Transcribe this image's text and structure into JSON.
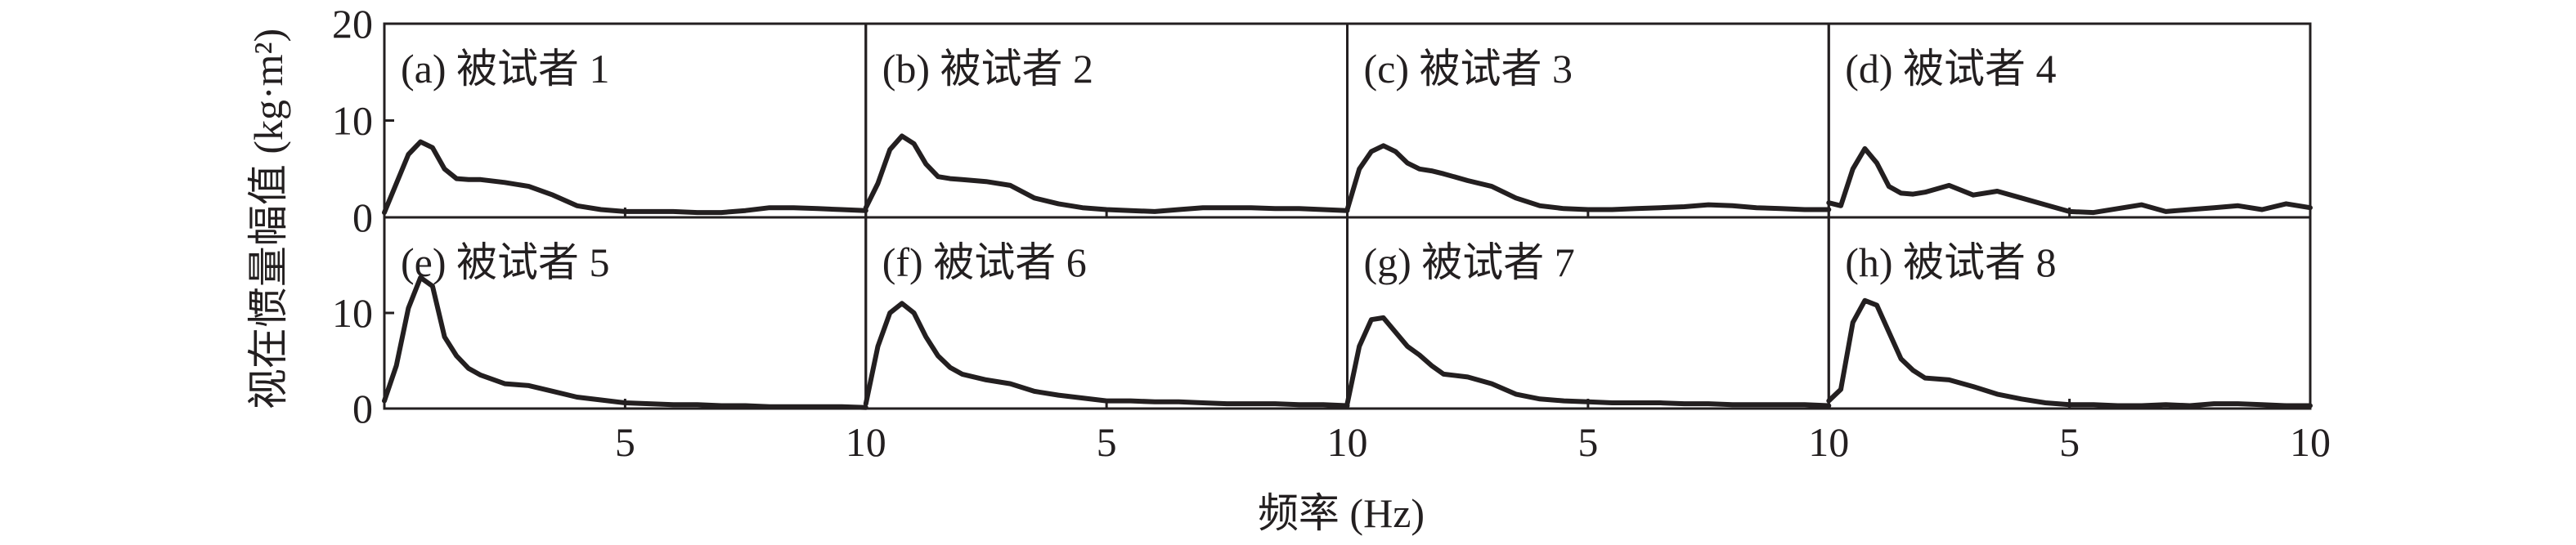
{
  "figure": {
    "ylabel": "视在惯量幅值 (kg·m²)",
    "xlabel": "频率 (Hz)"
  },
  "chart_data": {
    "type": "line",
    "layout": "small-multiples-2x4",
    "x_ticks": [
      0,
      5,
      10
    ],
    "x_tick_labels_shown": [
      "5",
      "10"
    ],
    "y_ticks": [
      0,
      10,
      20
    ],
    "xlim": [
      0,
      10
    ],
    "ylim_top_row": [
      0,
      20
    ],
    "ylim_bottom_row": [
      0,
      20
    ],
    "panels": [
      {
        "label": "(a) 被试者 1",
        "x": [
          0,
          0.25,
          0.5,
          0.75,
          1,
          1.25,
          1.5,
          1.75,
          2,
          2.5,
          3,
          3.5,
          4,
          4.5,
          5,
          5.5,
          6,
          6.5,
          7,
          7.5,
          8,
          8.5,
          9,
          9.5,
          10
        ],
        "y": [
          0.5,
          3.5,
          6.5,
          7.8,
          7.2,
          5.0,
          4.0,
          3.9,
          3.9,
          3.6,
          3.2,
          2.3,
          1.2,
          0.8,
          0.6,
          0.6,
          0.6,
          0.5,
          0.5,
          0.7,
          1.0,
          1.0,
          0.9,
          0.8,
          0.7
        ]
      },
      {
        "label": "(b) 被试者 2",
        "x": [
          0,
          0.25,
          0.5,
          0.75,
          1,
          1.25,
          1.5,
          1.75,
          2,
          2.5,
          3,
          3.5,
          4,
          4.5,
          5,
          5.5,
          6,
          6.5,
          7,
          7.5,
          8,
          8.5,
          9,
          9.5,
          10
        ],
        "y": [
          1.0,
          3.5,
          7.0,
          8.4,
          7.6,
          5.5,
          4.2,
          4.0,
          3.9,
          3.7,
          3.3,
          2.0,
          1.4,
          1.0,
          0.8,
          0.7,
          0.6,
          0.8,
          1.0,
          1.0,
          1.0,
          0.9,
          0.9,
          0.8,
          0.7
        ]
      },
      {
        "label": "(c) 被试者 3",
        "x": [
          0,
          0.25,
          0.5,
          0.75,
          1,
          1.25,
          1.5,
          1.75,
          2,
          2.5,
          3,
          3.5,
          4,
          4.5,
          5,
          5.5,
          6,
          6.5,
          7,
          7.5,
          8,
          8.5,
          9,
          9.5,
          10
        ],
        "y": [
          0.8,
          5.0,
          6.8,
          7.4,
          6.8,
          5.6,
          5.0,
          4.8,
          4.5,
          3.8,
          3.2,
          2.0,
          1.2,
          0.9,
          0.8,
          0.8,
          0.9,
          1.0,
          1.1,
          1.3,
          1.2,
          1.0,
          0.9,
          0.8,
          0.8
        ]
      },
      {
        "label": "(d) 被试者 4",
        "x": [
          0,
          0.25,
          0.5,
          0.75,
          1,
          1.25,
          1.5,
          1.75,
          2,
          2.5,
          3,
          3.5,
          4,
          4.5,
          5,
          5.5,
          6,
          6.5,
          7,
          7.5,
          8,
          8.5,
          9,
          9.5,
          10
        ],
        "y": [
          1.5,
          1.2,
          5.0,
          7.1,
          5.6,
          3.2,
          2.5,
          2.4,
          2.6,
          3.3,
          2.3,
          2.7,
          2.0,
          1.3,
          0.6,
          0.5,
          0.9,
          1.3,
          0.6,
          0.8,
          1.0,
          1.2,
          0.8,
          1.4,
          1.0
        ]
      },
      {
        "label": "(e) 被试者 5",
        "x": [
          0,
          0.25,
          0.5,
          0.75,
          1,
          1.25,
          1.5,
          1.75,
          2,
          2.5,
          3,
          3.5,
          4,
          4.5,
          5,
          5.5,
          6,
          6.5,
          7,
          7.5,
          8,
          8.5,
          9,
          9.5,
          10
        ],
        "y": [
          0.8,
          4.5,
          10.5,
          13.7,
          12.8,
          7.5,
          5.5,
          4.2,
          3.5,
          2.6,
          2.4,
          1.8,
          1.2,
          0.9,
          0.6,
          0.5,
          0.4,
          0.4,
          0.3,
          0.3,
          0.2,
          0.2,
          0.2,
          0.2,
          0.1
        ]
      },
      {
        "label": "(f) 被试者 6",
        "x": [
          0,
          0.25,
          0.5,
          0.75,
          1,
          1.25,
          1.5,
          1.75,
          2,
          2.5,
          3,
          3.5,
          4,
          4.5,
          5,
          5.5,
          6,
          6.5,
          7,
          7.5,
          8,
          8.5,
          9,
          9.5,
          10
        ],
        "y": [
          0.5,
          6.5,
          10.0,
          11.0,
          10.0,
          7.5,
          5.5,
          4.3,
          3.6,
          3.0,
          2.6,
          1.8,
          1.4,
          1.1,
          0.8,
          0.8,
          0.7,
          0.7,
          0.6,
          0.5,
          0.5,
          0.5,
          0.4,
          0.4,
          0.3
        ]
      },
      {
        "label": "(g) 被试者 7",
        "x": [
          0,
          0.25,
          0.5,
          0.75,
          1,
          1.25,
          1.5,
          1.75,
          2,
          2.5,
          3,
          3.5,
          4,
          4.5,
          5,
          5.5,
          6,
          6.5,
          7,
          7.5,
          8,
          8.5,
          9,
          9.5,
          10
        ],
        "y": [
          0.5,
          6.5,
          9.3,
          9.5,
          8.0,
          6.5,
          5.6,
          4.5,
          3.6,
          3.3,
          2.6,
          1.5,
          1.0,
          0.8,
          0.7,
          0.6,
          0.6,
          0.6,
          0.5,
          0.5,
          0.4,
          0.4,
          0.4,
          0.4,
          0.3
        ]
      },
      {
        "label": "(h) 被试者 8",
        "x": [
          0,
          0.25,
          0.5,
          0.75,
          1,
          1.25,
          1.5,
          1.75,
          2,
          2.5,
          3,
          3.5,
          4,
          4.5,
          5,
          5.5,
          6,
          6.5,
          7,
          7.5,
          8,
          8.5,
          9,
          9.5,
          10
        ],
        "y": [
          0.8,
          2.0,
          9.0,
          11.3,
          10.8,
          8.0,
          5.2,
          4.0,
          3.2,
          3.0,
          2.3,
          1.5,
          1.0,
          0.6,
          0.4,
          0.4,
          0.3,
          0.3,
          0.4,
          0.3,
          0.5,
          0.5,
          0.4,
          0.3,
          0.3
        ]
      }
    ]
  }
}
